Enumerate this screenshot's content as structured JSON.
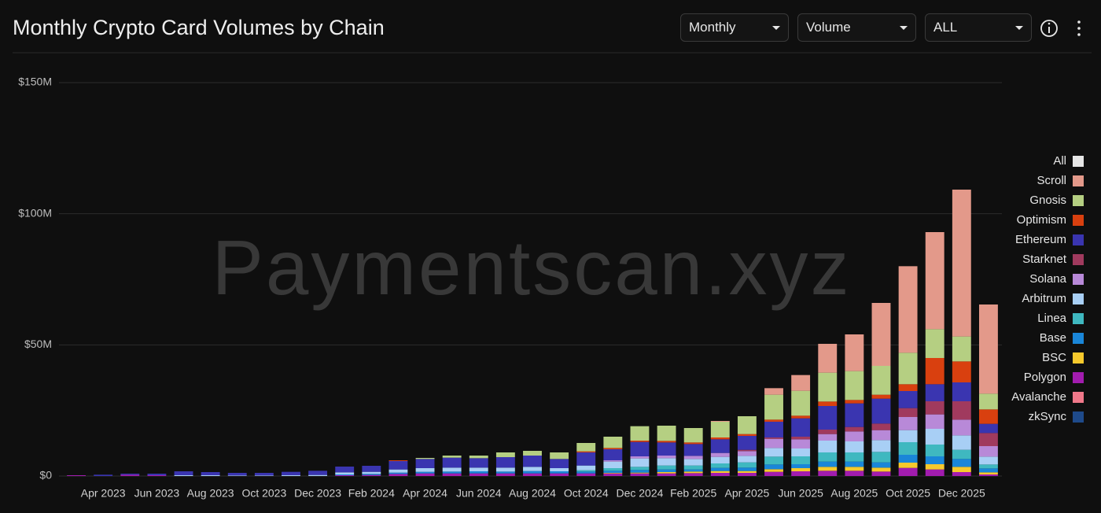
{
  "chart_data": {
    "type": "stacked_bar",
    "title": "Monthly Crypto Card Volumes by Chain",
    "watermark": "Paymentscan.xyz",
    "controls": {
      "period": "Monthly",
      "metric": "Volume",
      "range": "ALL"
    },
    "categories": [
      null,
      "Apr 2023",
      null,
      "Jun 2023",
      null,
      "Aug 2023",
      null,
      "Oct 2023",
      null,
      "Dec 2023",
      null,
      "Feb 2024",
      null,
      "Apr 2024",
      null,
      "Jun 2024",
      null,
      "Aug 2024",
      null,
      "Oct 2024",
      null,
      "Dec 2024",
      null,
      "Feb 2025",
      null,
      "Apr 2025",
      null,
      "Jun 2025",
      null,
      "Aug 2025",
      null,
      "Oct 2025",
      null,
      "Dec 2025",
      null
    ],
    "ylim": [
      0,
      150
    ],
    "yticks": [
      {
        "value": 0,
        "label": "$0"
      },
      {
        "value": 50,
        "label": "$50M"
      },
      {
        "value": 100,
        "label": "$100M"
      },
      {
        "value": 150,
        "label": "$150M"
      }
    ],
    "grid": true,
    "legend_position": "right",
    "legend_all": {
      "name": "All",
      "color": "#e6e6e6"
    },
    "series": [
      {
        "name": "Scroll",
        "color": "#e3998a",
        "values": [
          0,
          0,
          0,
          0,
          0,
          0,
          0,
          0,
          0,
          0,
          0,
          0,
          0,
          0,
          0,
          0,
          0,
          0,
          0,
          0,
          0,
          0,
          0,
          0,
          0.3,
          0,
          2.5,
          6,
          11,
          14,
          24,
          33,
          37,
          56,
          34
        ]
      },
      {
        "name": "Gnosis",
        "color": "#b5cf82",
        "values": [
          0,
          0,
          0,
          0,
          0,
          0,
          0,
          0,
          0,
          0,
          0,
          0,
          0,
          0.4,
          0.8,
          1.0,
          1.8,
          1.8,
          2.5,
          3.2,
          4.3,
          5.5,
          5.8,
          5.5,
          6.0,
          6.8,
          9.5,
          9.5,
          11,
          11,
          11,
          12,
          11,
          9.5,
          6
        ]
      },
      {
        "name": "Optimism",
        "color": "#d9400f",
        "values": [
          0,
          0,
          0,
          0,
          0,
          0,
          0,
          0,
          0,
          0,
          0,
          0,
          0.3,
          0,
          0,
          0,
          0,
          0,
          0,
          0.4,
          0.5,
          0.5,
          0.6,
          0.6,
          0.7,
          0.7,
          0.8,
          1.0,
          1.7,
          1.3,
          1.5,
          2.6,
          10,
          8,
          5.5
        ]
      },
      {
        "name": "Ethereum",
        "color": "#3a35b0",
        "values": [
          0,
          0.5,
          0.4,
          0.6,
          1.5,
          1.2,
          1.0,
          1.0,
          1.3,
          1.6,
          2.2,
          2.3,
          3.2,
          3.5,
          3.8,
          3.6,
          4.0,
          4.3,
          3.5,
          5.0,
          4.2,
          5.5,
          5.0,
          4.5,
          5.2,
          5.3,
          6.0,
          7.0,
          9,
          9,
          9.5,
          6.5,
          6.5,
          7.2,
          3.5
        ]
      },
      {
        "name": "Starknet",
        "color": "#a03a5e",
        "values": [
          0,
          0,
          0,
          0,
          0,
          0,
          0,
          0,
          0,
          0,
          0,
          0,
          0,
          0,
          0,
          0,
          0,
          0,
          0,
          0,
          0,
          0,
          0,
          0,
          0,
          0.5,
          0.5,
          1.0,
          1.7,
          1.7,
          2.5,
          3.4,
          5,
          7,
          5
        ]
      },
      {
        "name": "Solana",
        "color": "#b889d8",
        "values": [
          0,
          0,
          0,
          0,
          0,
          0,
          0,
          0,
          0,
          0,
          0,
          0,
          0,
          0,
          0,
          0,
          0,
          0,
          0,
          0,
          0.5,
          0.8,
          1.0,
          1.2,
          1.5,
          1.8,
          3.5,
          3.5,
          2.5,
          3.8,
          3.8,
          5,
          5.5,
          6,
          4
        ]
      },
      {
        "name": "Arbitrum",
        "color": "#a8cff5",
        "values": [
          0,
          0,
          0,
          0,
          0.3,
          0.3,
          0.2,
          0.2,
          0.3,
          0.4,
          0.8,
          0.8,
          1.2,
          1.4,
          1.5,
          1.4,
          1.5,
          1.6,
          1.2,
          1.8,
          2.5,
          3.2,
          2.8,
          2.5,
          2.5,
          2.5,
          3.3,
          3.0,
          4.5,
          4.2,
          4.5,
          4.6,
          6,
          5.5,
          3
        ]
      },
      {
        "name": "Linea",
        "color": "#3fb8c0",
        "values": [
          0,
          0,
          0,
          0,
          0,
          0,
          0,
          0,
          0,
          0,
          0,
          0,
          0,
          0,
          0,
          0,
          0,
          0,
          0,
          0.5,
          1.0,
          1.2,
          1.5,
          1.5,
          1.7,
          2.0,
          3.0,
          3.0,
          3.5,
          3.5,
          4.0,
          4.8,
          4.5,
          3.5,
          1.5
        ]
      },
      {
        "name": "Base",
        "color": "#1a86d8",
        "values": [
          0,
          0,
          0,
          0,
          0,
          0,
          0,
          0,
          0,
          0,
          0.3,
          0.4,
          0.5,
          0.6,
          0.7,
          0.8,
          0.7,
          0.9,
          0.8,
          0.7,
          0.8,
          1.0,
          1.0,
          0.8,
          1.2,
          1.3,
          1.8,
          1.5,
          2,
          2,
          2,
          3,
          3,
          3,
          1.5
        ]
      },
      {
        "name": "BSC",
        "color": "#f6c92c",
        "values": [
          0,
          0,
          0,
          0,
          0,
          0,
          0,
          0,
          0,
          0,
          0,
          0,
          0,
          0,
          0,
          0,
          0,
          0,
          0,
          0,
          0.2,
          0.3,
          0.5,
          0.6,
          0.7,
          0.7,
          1.0,
          1.2,
          1.5,
          1.5,
          1.5,
          2,
          2,
          2,
          0.8
        ]
      },
      {
        "name": "Polygon",
        "color": "#a21caf",
        "values": [
          0.3,
          0,
          0.5,
          0.3,
          0,
          0,
          0,
          0,
          0,
          0,
          0.3,
          0.4,
          0.8,
          1.0,
          1.0,
          1.0,
          1.0,
          1.0,
          1.0,
          1.0,
          1.0,
          1.0,
          1.0,
          1.1,
          1.2,
          1.2,
          1.6,
          1.8,
          2,
          2,
          1.7,
          3.1,
          2.5,
          1.5,
          0.6
        ]
      },
      {
        "name": "Avalanche",
        "color": "#f0788a",
        "values": [
          0,
          0,
          0,
          0,
          0,
          0,
          0,
          0,
          0,
          0,
          0,
          0,
          0,
          0,
          0,
          0,
          0,
          0,
          0,
          0,
          0,
          0,
          0,
          0,
          0,
          0,
          0,
          0,
          0,
          0,
          0,
          0,
          0,
          0,
          0
        ]
      },
      {
        "name": "zkSync",
        "color": "#1e4a8a",
        "values": [
          0,
          0,
          0,
          0,
          0,
          0,
          0,
          0,
          0,
          0,
          0,
          0,
          0,
          0,
          0,
          0,
          0,
          0,
          0,
          0,
          0,
          0,
          0,
          0,
          0,
          0,
          0,
          0,
          0,
          0,
          0,
          0,
          0,
          0,
          0
        ]
      }
    ]
  }
}
